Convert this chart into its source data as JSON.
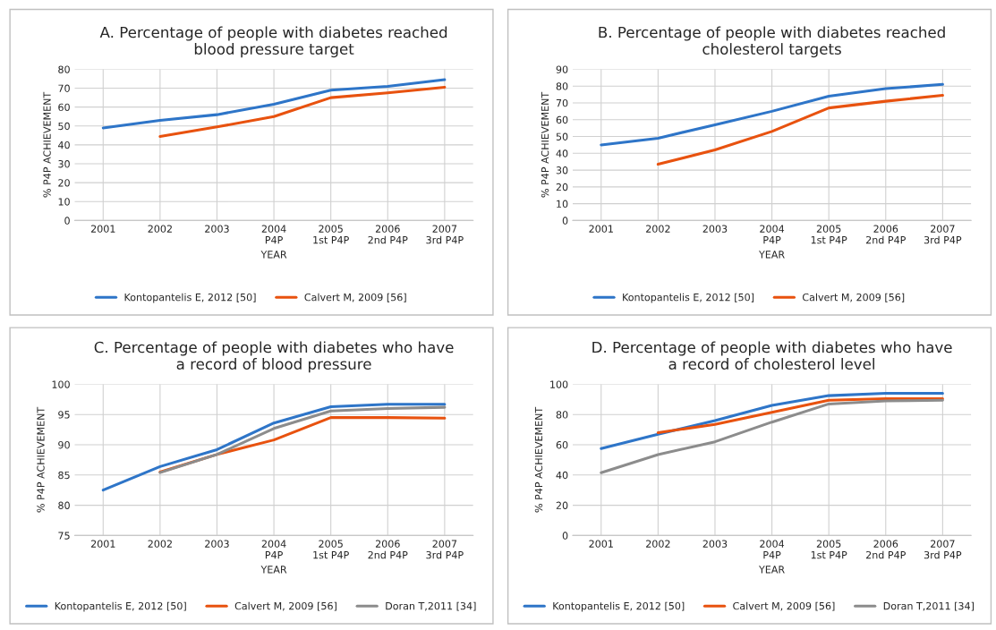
{
  "chart_data": [
    {
      "type": "line",
      "title": "A. Percentage of people with diabetes reached\nblood pressure target",
      "xlabel": "YEAR",
      "ylabel": "% P4P ACHIEVEMENT",
      "categories": [
        "2001",
        "2002",
        "2003",
        "2004\nP4P",
        "2005\n1st P4P",
        "2006\n2nd P4P",
        "2007\n3rd P4P"
      ],
      "ylim": [
        0,
        80
      ],
      "yticks": [
        0,
        10,
        20,
        30,
        40,
        50,
        60,
        70,
        80
      ],
      "grid": true,
      "legend": "bottom",
      "marker": "none",
      "line_style": "solid",
      "series": [
        {
          "name": "Kontopantelis E, 2012 [50]",
          "color": "#2e75c8",
          "values": [
            49,
            53,
            56,
            61.5,
            69,
            71,
            74.5
          ]
        },
        {
          "name": "Calvert M, 2009 [56]",
          "color": "#e8520f",
          "values": [
            null,
            44.5,
            49.5,
            55,
            65,
            67.5,
            70.5
          ]
        }
      ]
    },
    {
      "type": "line",
      "title": "B. Percentage of people with diabetes reached\ncholesterol targets",
      "xlabel": "YEAR",
      "ylabel": "% P4P ACHIEVEMENT",
      "categories": [
        "2001",
        "2002",
        "2003",
        "2004\nP4P",
        "2005\n1st P4P",
        "2006\n2nd P4P",
        "2007\n3rd P4P"
      ],
      "ylim": [
        0,
        90
      ],
      "yticks": [
        0,
        10,
        20,
        30,
        40,
        50,
        60,
        70,
        80,
        90
      ],
      "grid": true,
      "legend": "bottom",
      "marker": "none",
      "line_style": "solid",
      "series": [
        {
          "name": "Kontopantelis E, 2012 [50]",
          "color": "#2e75c8",
          "values": [
            45,
            49,
            57,
            65,
            74,
            78.5,
            81
          ]
        },
        {
          "name": "Calvert M, 2009 [56]",
          "color": "#e8520f",
          "values": [
            null,
            33.5,
            42,
            53,
            67,
            71,
            74.5
          ]
        }
      ]
    },
    {
      "type": "line",
      "title": "C. Percentage of people with diabetes who have\na record of blood pressure",
      "xlabel": "YEAR",
      "ylabel": "% P4P ACHIEVEMENT",
      "categories": [
        "2001",
        "2002",
        "2003",
        "2004\nP4P",
        "2005\n1st P4P",
        "2006\n2nd P4P",
        "2007\n3rd P4P"
      ],
      "ylim": [
        75,
        100
      ],
      "yticks": [
        75,
        80,
        85,
        90,
        95,
        100
      ],
      "grid": true,
      "legend": "bottom",
      "marker": "none",
      "line_style": "solid",
      "series": [
        {
          "name": "Kontopantelis E, 2012 [50]",
          "color": "#2e75c8",
          "values": [
            82.5,
            86.4,
            89.2,
            93.6,
            96.3,
            96.7,
            96.7
          ]
        },
        {
          "name": "Calvert M, 2009 [56]",
          "color": "#e8520f",
          "values": [
            null,
            85.5,
            88.4,
            90.8,
            94.5,
            94.5,
            94.4
          ]
        },
        {
          "name": "Doran T,2011 [34]",
          "color": "#8c8c8c",
          "values": [
            null,
            85.4,
            88.4,
            92.7,
            95.6,
            96.0,
            96.2
          ]
        }
      ]
    },
    {
      "type": "line",
      "title": "D. Percentage of people with diabetes who have\na record of cholesterol level",
      "xlabel": "YEAR",
      "ylabel": "% P4P ACHIEVEMENT",
      "categories": [
        "2001",
        "2002",
        "2003",
        "2004\nP4P",
        "2005\n1st P4P",
        "2006\n2nd P4P",
        "2007\n3rd P4P"
      ],
      "ylim": [
        0,
        100
      ],
      "yticks": [
        0,
        20,
        40,
        60,
        80,
        100
      ],
      "grid": true,
      "legend": "bottom",
      "marker": "none",
      "line_style": "solid",
      "series": [
        {
          "name": "Kontopantelis E, 2012 [50]",
          "color": "#2e75c8",
          "values": [
            57.5,
            67,
            76,
            86,
            92.5,
            94,
            94
          ]
        },
        {
          "name": "Calvert M, 2009 [56]",
          "color": "#e8520f",
          "values": [
            null,
            68,
            73.5,
            81.5,
            89.5,
            90.5,
            90.5
          ]
        },
        {
          "name": "Doran T,2011 [34]",
          "color": "#8c8c8c",
          "values": [
            41.5,
            53.5,
            62,
            75,
            87,
            89,
            89.5
          ]
        }
      ]
    }
  ]
}
